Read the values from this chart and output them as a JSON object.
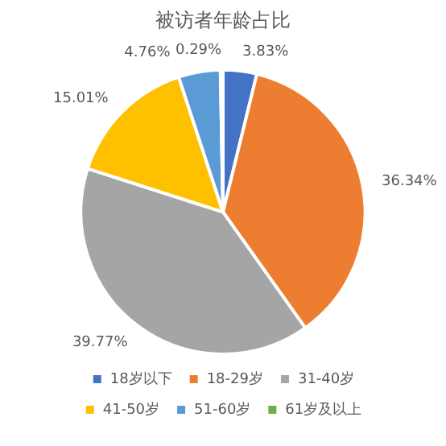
{
  "chart_data": {
    "type": "pie",
    "title": "被访者年龄占比",
    "categories": [
      "18岁以下",
      "18-29岁",
      "31-40岁",
      "41-50岁",
      "51-60岁",
      "61岁及以上"
    ],
    "values": [
      3.83,
      36.34,
      39.77,
      15.01,
      4.76,
      0.29
    ],
    "value_labels": [
      "3.83%",
      "36.34%",
      "39.77%",
      "15.01%",
      "4.76%",
      "0.29%"
    ],
    "colors": [
      "#4472c4",
      "#ed7d31",
      "#a5a5a5",
      "#ffc000",
      "#5b9bd5",
      "#70ad47"
    ],
    "legend": "bottom"
  }
}
